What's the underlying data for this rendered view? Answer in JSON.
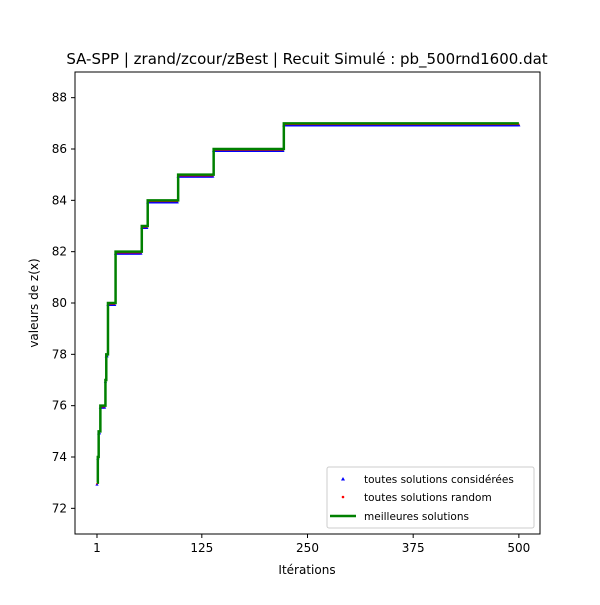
{
  "chart_data": {
    "type": "line",
    "title": "SA-SPP | zrand/zcour/zBest | Recuit Simulé : pb_500rnd1600.dat",
    "xlabel": "Itérations",
    "ylabel": "valeurs de z(x)",
    "xlim": [
      -25,
      525
    ],
    "ylim": [
      71,
      89
    ],
    "xticks": [
      1,
      125,
      250,
      375,
      500
    ],
    "xtick_labels": [
      "1",
      "125",
      "250",
      "375",
      "500"
    ],
    "yticks": [
      72,
      74,
      76,
      78,
      80,
      82,
      84,
      86,
      88
    ],
    "ytick_labels": [
      "72",
      "74",
      "76",
      "78",
      "80",
      "82",
      "84",
      "86",
      "88"
    ],
    "grid": false,
    "legend": {
      "placement": "lower-right",
      "entries": [
        {
          "label": "toutes solutions considérées",
          "marker": "triangle",
          "color": "#0000ff"
        },
        {
          "label": "toutes solutions random",
          "marker": "dot",
          "color": "#ff0000"
        },
        {
          "label": "meilleures solutions",
          "marker": "line",
          "color": "#008000"
        }
      ]
    },
    "series": [
      {
        "name": "meilleures solutions",
        "style": "step-line",
        "color": "#008000",
        "points": [
          [
            1,
            73
          ],
          [
            2,
            74
          ],
          [
            3,
            75
          ],
          [
            5,
            76
          ],
          [
            10,
            76
          ],
          [
            11,
            77
          ],
          [
            12,
            78
          ],
          [
            14,
            80
          ],
          [
            22,
            80
          ],
          [
            23,
            82
          ],
          [
            53,
            82
          ],
          [
            54,
            83
          ],
          [
            60,
            83
          ],
          [
            61,
            84
          ],
          [
            96,
            84
          ],
          [
            97,
            85
          ],
          [
            138,
            85
          ],
          [
            139,
            86
          ],
          [
            221,
            86
          ],
          [
            222,
            87
          ],
          [
            500,
            87
          ]
        ]
      },
      {
        "name": "toutes solutions considérées",
        "style": "triangle-markers",
        "color": "#0000ff",
        "points": [
          [
            1,
            73
          ],
          [
            2,
            74
          ],
          [
            3,
            75
          ],
          [
            4,
            75
          ],
          [
            5,
            76
          ],
          [
            6,
            76
          ],
          [
            7,
            76
          ],
          [
            8,
            76
          ],
          [
            9,
            76
          ],
          [
            10,
            76
          ],
          [
            11,
            77
          ],
          [
            12,
            78
          ],
          [
            13,
            78
          ],
          [
            14,
            80
          ],
          [
            15,
            80
          ],
          [
            16,
            80
          ],
          [
            17,
            80
          ],
          [
            18,
            80
          ],
          [
            19,
            80
          ],
          [
            20,
            80
          ],
          [
            21,
            80
          ],
          [
            22,
            80
          ],
          [
            23,
            82
          ],
          [
            53,
            82
          ],
          [
            54,
            83
          ],
          [
            60,
            83
          ],
          [
            61,
            84
          ],
          [
            96,
            84
          ],
          [
            97,
            85
          ],
          [
            138,
            85
          ],
          [
            139,
            86
          ],
          [
            221,
            86
          ],
          [
            222,
            87
          ],
          [
            500,
            87
          ]
        ]
      },
      {
        "name": "toutes solutions random",
        "style": "dot-markers",
        "color": "#ff0000",
        "points": [
          [
            1,
            73
          ],
          [
            2,
            74
          ],
          [
            3,
            75
          ],
          [
            5,
            76
          ],
          [
            10,
            76
          ],
          [
            11,
            77
          ],
          [
            12,
            78
          ],
          [
            14,
            80
          ],
          [
            22,
            80
          ],
          [
            23,
            82
          ],
          [
            53,
            82
          ],
          [
            54,
            83
          ],
          [
            60,
            83
          ],
          [
            61,
            84
          ],
          [
            96,
            84
          ],
          [
            97,
            85
          ],
          [
            138,
            85
          ],
          [
            139,
            86
          ],
          [
            221,
            86
          ],
          [
            222,
            87
          ],
          [
            500,
            87
          ]
        ]
      }
    ]
  }
}
